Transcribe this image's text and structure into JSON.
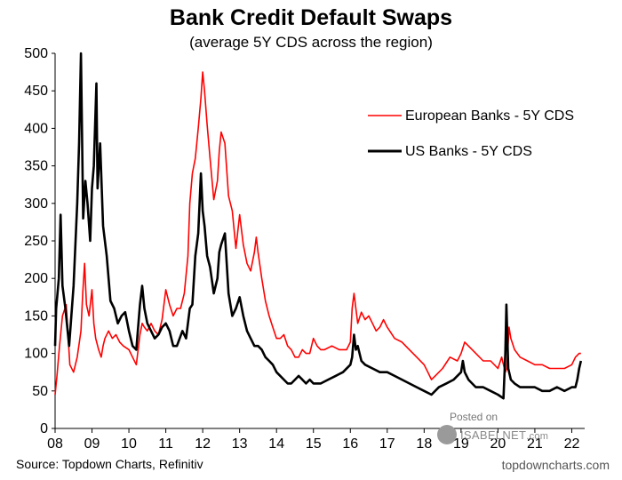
{
  "chart_data": {
    "type": "line",
    "title": "Bank Credit Default Swaps",
    "subtitle": "(average 5Y CDS across the region)",
    "xlabel": "",
    "ylabel": "",
    "ylim": [
      0,
      500
    ],
    "xlim": [
      2008.0,
      2022.35
    ],
    "y_ticks": [
      "0",
      "50",
      "100",
      "150",
      "200",
      "250",
      "300",
      "350",
      "400",
      "450",
      "500"
    ],
    "x_ticks": [
      "08",
      "09",
      "10",
      "11",
      "12",
      "13",
      "14",
      "15",
      "16",
      "17",
      "18",
      "19",
      "20",
      "21",
      "22"
    ],
    "legend_position": "right",
    "grid": false,
    "series": [
      {
        "name": "European Banks - 5Y CDS",
        "color": "#ff0000",
        "x": [
          2008.0,
          2008.05,
          2008.12,
          2008.2,
          2008.3,
          2008.4,
          2008.5,
          2008.6,
          2008.7,
          2008.75,
          2008.8,
          2008.85,
          2008.92,
          2009.0,
          2009.05,
          2009.1,
          2009.18,
          2009.25,
          2009.3,
          2009.35,
          2009.45,
          2009.55,
          2009.65,
          2009.75,
          2009.85,
          2010.0,
          2010.1,
          2010.2,
          2010.3,
          2010.36,
          2010.42,
          2010.5,
          2010.6,
          2010.7,
          2010.8,
          2010.9,
          2011.0,
          2011.1,
          2011.2,
          2011.3,
          2011.4,
          2011.5,
          2011.6,
          2011.65,
          2011.72,
          2011.8,
          2011.88,
          2011.95,
          2012.0,
          2012.05,
          2012.12,
          2012.2,
          2012.3,
          2012.4,
          2012.45,
          2012.5,
          2012.6,
          2012.7,
          2012.8,
          2012.9,
          2013.0,
          2013.1,
          2013.2,
          2013.3,
          2013.4,
          2013.45,
          2013.5,
          2013.6,
          2013.7,
          2013.8,
          2013.9,
          2014.0,
          2014.1,
          2014.2,
          2014.3,
          2014.4,
          2014.5,
          2014.6,
          2014.7,
          2014.8,
          2014.9,
          2015.0,
          2015.1,
          2015.2,
          2015.3,
          2015.5,
          2015.7,
          2015.9,
          2016.0,
          2016.05,
          2016.1,
          2016.2,
          2016.3,
          2016.4,
          2016.5,
          2016.6,
          2016.7,
          2016.8,
          2016.9,
          2017.0,
          2017.2,
          2017.4,
          2017.6,
          2017.8,
          2018.0,
          2018.1,
          2018.2,
          2018.3,
          2018.5,
          2018.7,
          2018.9,
          2019.0,
          2019.1,
          2019.2,
          2019.4,
          2019.6,
          2019.8,
          2020.0,
          2020.1,
          2020.15,
          2020.2,
          2020.24,
          2020.3,
          2020.35,
          2020.45,
          2020.6,
          2020.8,
          2021.0,
          2021.2,
          2021.4,
          2021.6,
          2021.8,
          2022.0,
          2022.1,
          2022.2,
          2022.25
        ],
        "values": [
          45,
          70,
          110,
          150,
          165,
          85,
          75,
          95,
          130,
          180,
          220,
          165,
          150,
          185,
          140,
          120,
          105,
          95,
          110,
          120,
          130,
          120,
          125,
          115,
          110,
          105,
          95,
          85,
          125,
          140,
          135,
          130,
          140,
          130,
          125,
          145,
          185,
          165,
          150,
          160,
          160,
          180,
          230,
          300,
          340,
          360,
          400,
          440,
          475,
          450,
          405,
          360,
          305,
          330,
          370,
          395,
          380,
          310,
          290,
          240,
          285,
          245,
          220,
          210,
          235,
          255,
          235,
          200,
          170,
          150,
          135,
          120,
          120,
          125,
          110,
          105,
          95,
          95,
          105,
          100,
          100,
          120,
          110,
          105,
          105,
          110,
          105,
          105,
          115,
          160,
          180,
          140,
          155,
          145,
          150,
          140,
          130,
          135,
          145,
          135,
          120,
          115,
          105,
          95,
          85,
          75,
          65,
          70,
          80,
          95,
          90,
          100,
          115,
          110,
          100,
          90,
          90,
          80,
          95,
          85,
          75,
          80,
          135,
          120,
          105,
          95,
          90,
          85,
          85,
          80,
          80,
          80,
          85,
          95,
          100,
          100
        ]
      },
      {
        "name": "US Banks - 5Y CDS",
        "color": "#000000",
        "x": [
          2008.0,
          2008.03,
          2008.1,
          2008.15,
          2008.2,
          2008.28,
          2008.38,
          2008.5,
          2008.6,
          2008.65,
          2008.7,
          2008.76,
          2008.82,
          2008.88,
          2008.95,
          2009.0,
          2009.05,
          2009.12,
          2009.15,
          2009.22,
          2009.3,
          2009.4,
          2009.5,
          2009.6,
          2009.7,
          2009.8,
          2009.9,
          2010.0,
          2010.1,
          2010.2,
          2010.3,
          2010.36,
          2010.42,
          2010.5,
          2010.6,
          2010.7,
          2010.8,
          2010.9,
          2011.0,
          2011.1,
          2011.2,
          2011.3,
          2011.45,
          2011.55,
          2011.6,
          2011.65,
          2011.72,
          2011.8,
          2011.88,
          2011.95,
          2012.0,
          2012.05,
          2012.12,
          2012.2,
          2012.3,
          2012.4,
          2012.45,
          2012.5,
          2012.6,
          2012.7,
          2012.8,
          2012.9,
          2013.0,
          2013.1,
          2013.2,
          2013.3,
          2013.4,
          2013.5,
          2013.6,
          2013.7,
          2013.8,
          2013.9,
          2014.0,
          2014.1,
          2014.2,
          2014.3,
          2014.4,
          2014.5,
          2014.6,
          2014.7,
          2014.8,
          2014.9,
          2015.0,
          2015.2,
          2015.4,
          2015.6,
          2015.8,
          2016.0,
          2016.05,
          2016.1,
          2016.15,
          2016.2,
          2016.3,
          2016.4,
          2016.6,
          2016.8,
          2017.0,
          2017.2,
          2017.4,
          2017.6,
          2017.8,
          2018.0,
          2018.2,
          2018.4,
          2018.6,
          2018.8,
          2019.0,
          2019.05,
          2019.1,
          2019.2,
          2019.4,
          2019.6,
          2019.8,
          2020.0,
          2020.15,
          2020.2,
          2020.23,
          2020.28,
          2020.35,
          2020.45,
          2020.6,
          2020.8,
          2021.0,
          2021.2,
          2021.4,
          2021.6,
          2021.8,
          2022.0,
          2022.1,
          2022.15,
          2022.2,
          2022.25
        ],
        "values": [
          110,
          160,
          200,
          285,
          190,
          160,
          110,
          190,
          300,
          380,
          500,
          280,
          330,
          300,
          250,
          320,
          350,
          460,
          320,
          380,
          270,
          230,
          170,
          160,
          140,
          150,
          155,
          130,
          110,
          105,
          165,
          190,
          160,
          140,
          130,
          120,
          125,
          135,
          140,
          130,
          110,
          110,
          130,
          120,
          140,
          160,
          165,
          230,
          260,
          340,
          290,
          270,
          230,
          215,
          180,
          200,
          235,
          245,
          260,
          180,
          150,
          160,
          175,
          150,
          130,
          120,
          110,
          110,
          105,
          95,
          90,
          85,
          75,
          70,
          65,
          60,
          60,
          65,
          70,
          65,
          60,
          65,
          60,
          60,
          65,
          70,
          75,
          85,
          95,
          125,
          105,
          110,
          90,
          85,
          80,
          75,
          75,
          70,
          65,
          60,
          55,
          50,
          45,
          55,
          60,
          65,
          75,
          90,
          75,
          65,
          55,
          55,
          50,
          45,
          40,
          100,
          165,
          80,
          65,
          60,
          55,
          55,
          55,
          50,
          50,
          55,
          50,
          55,
          55,
          65,
          80,
          90
        ]
      }
    ]
  },
  "source_text": "Source: Topdown Charts, Refinitiv",
  "brand_text": "topdowncharts.com",
  "watermark": {
    "posted": "Posted on",
    "site": "ISABELNET",
    "domain": ".com"
  }
}
